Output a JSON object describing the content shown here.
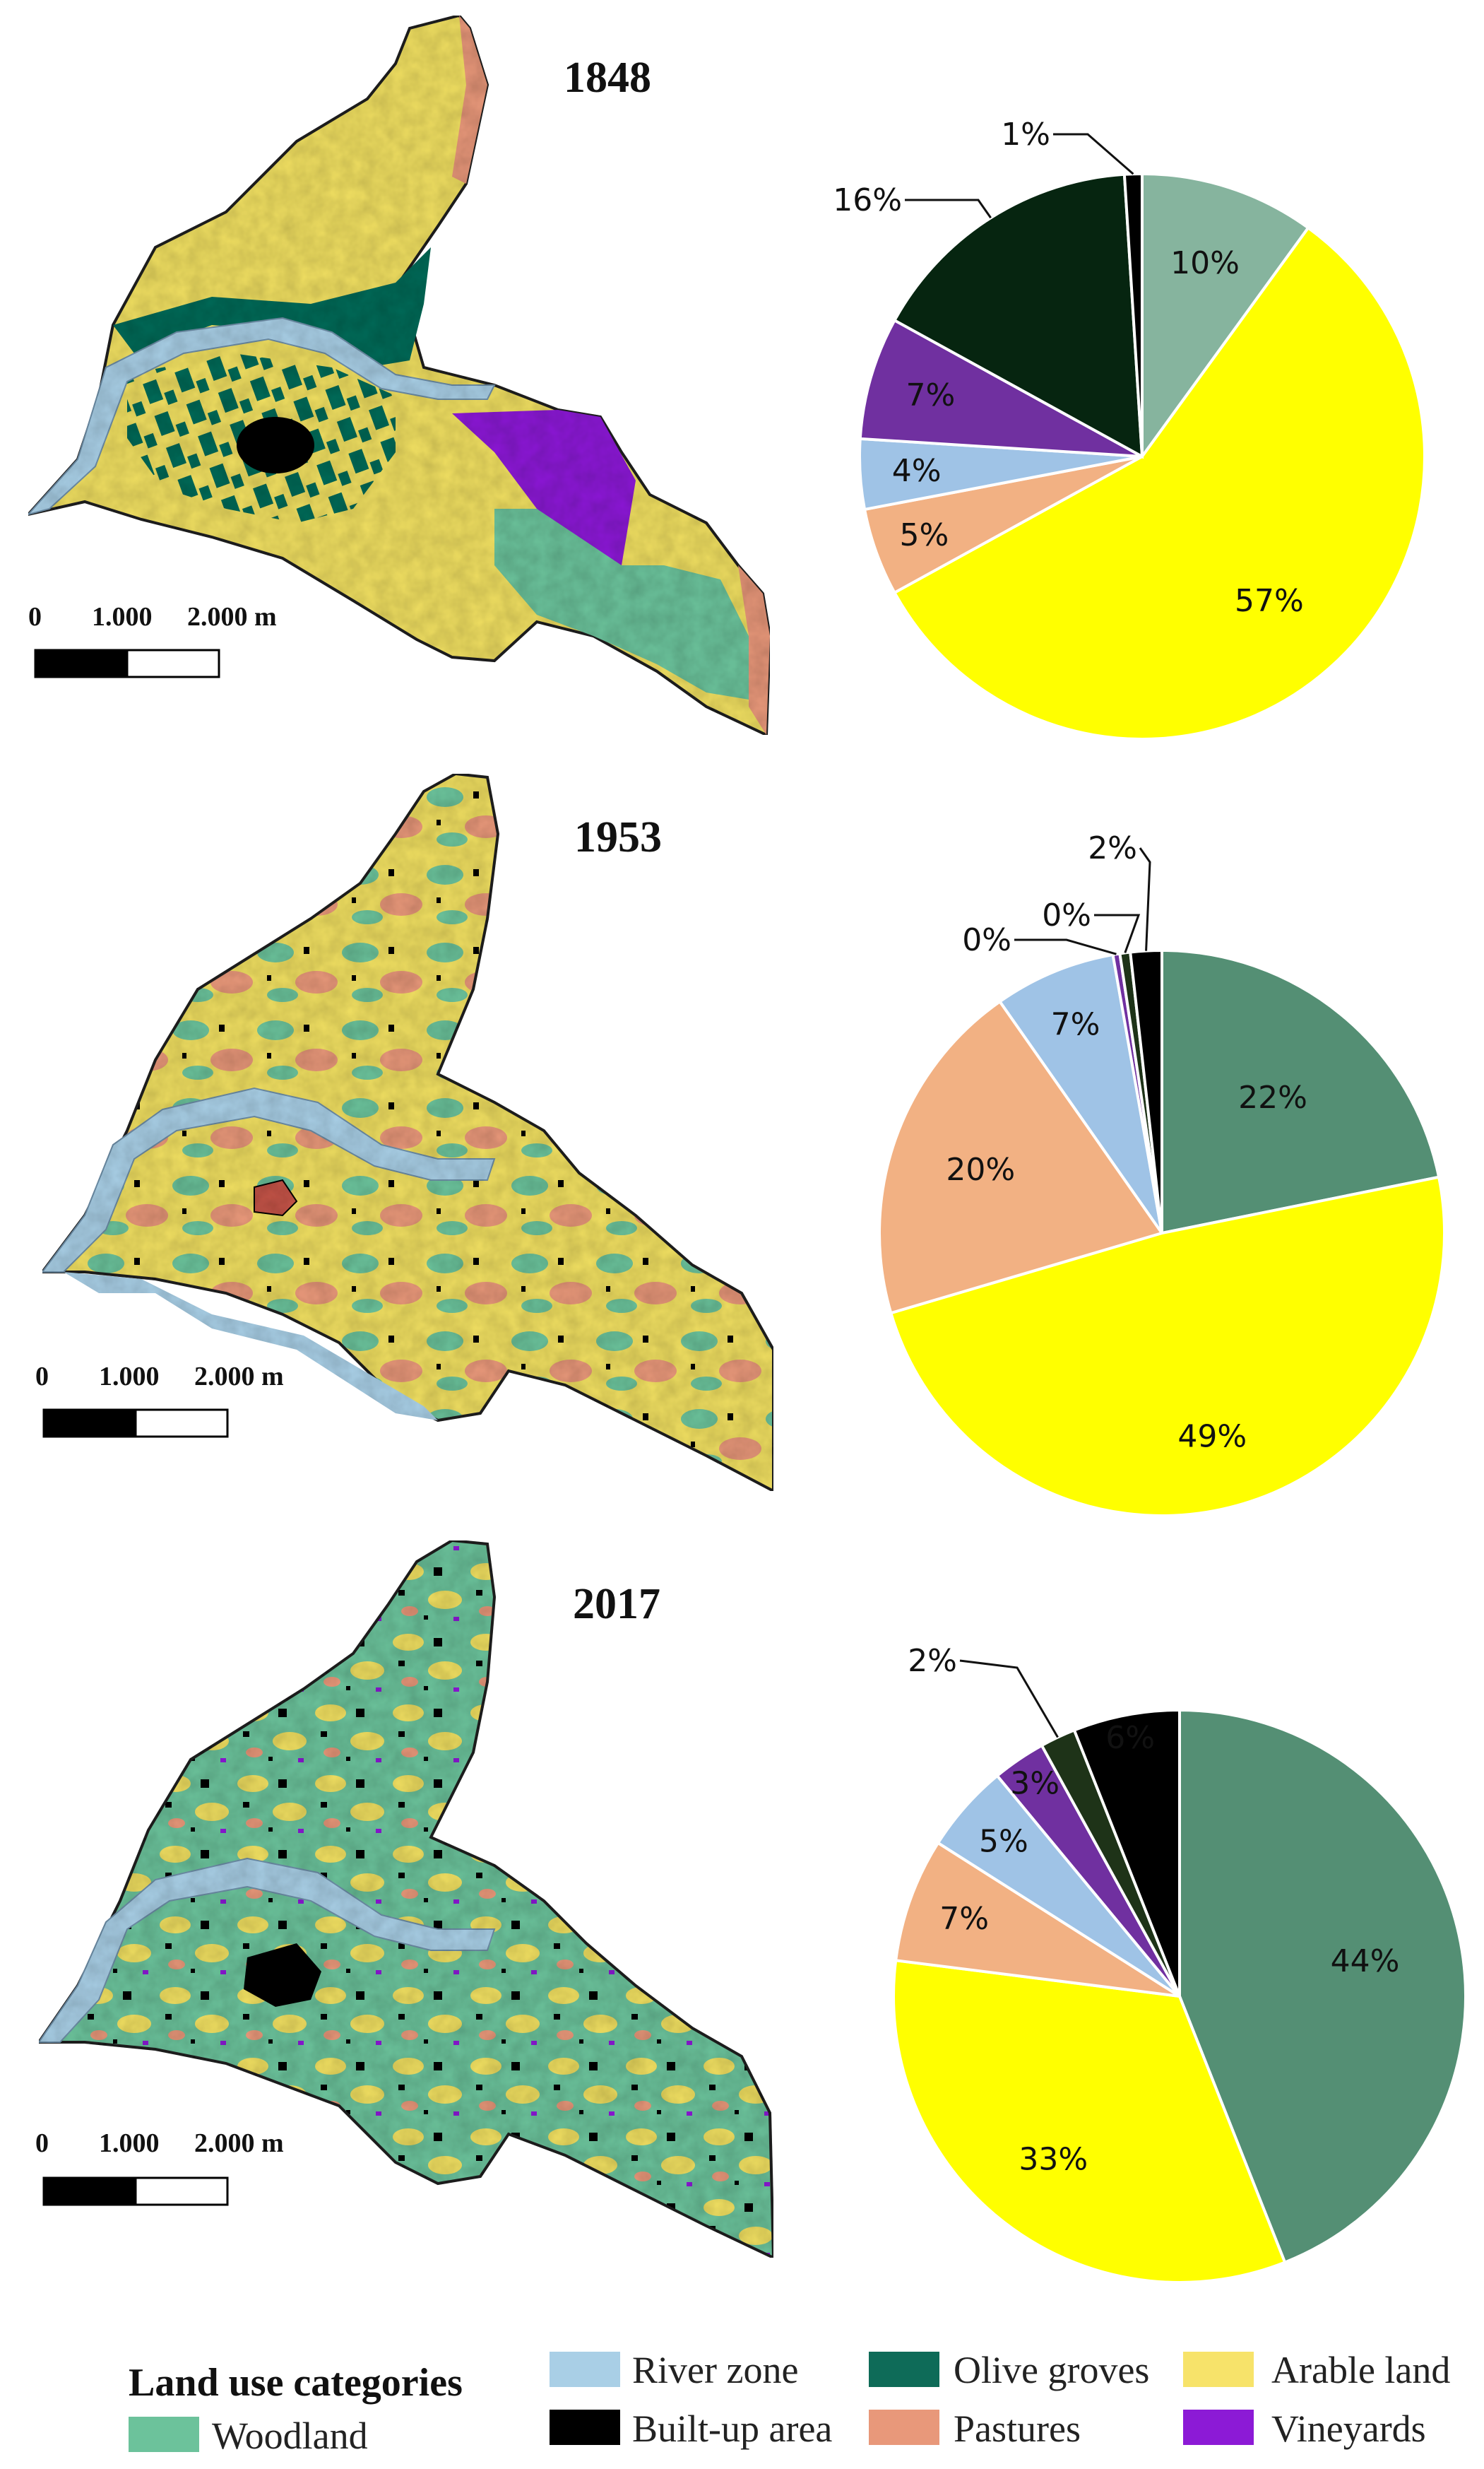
{
  "panels": [
    {
      "year": "1848",
      "scale": {
        "zero": "0",
        "mid": "1.000",
        "end": "2.000 m"
      }
    },
    {
      "year": "1953",
      "scale": {
        "zero": "0",
        "mid": "1.000",
        "end": "2.000 m"
      }
    },
    {
      "year": "2017",
      "scale": {
        "zero": "0",
        "mid": "1.000",
        "end": "2.000 m"
      }
    }
  ],
  "legend": {
    "title": "Land use categories",
    "items": [
      {
        "key": "river",
        "label": "River zone",
        "color": "#a9cfe6"
      },
      {
        "key": "olive",
        "label": "Olive groves",
        "color": "#0e6b58"
      },
      {
        "key": "arable",
        "label": "Arable land",
        "color": "#f7e36a"
      },
      {
        "key": "woodland",
        "label": "Woodland",
        "color": "#6cc29b"
      },
      {
        "key": "builtup",
        "label": "Built-up area",
        "color": "#000000"
      },
      {
        "key": "pastures",
        "label": "Pastures",
        "color": "#e8987a"
      },
      {
        "key": "vineyards",
        "label": "Vineyards",
        "color": "#8c1ad6"
      }
    ]
  },
  "chart_data": [
    {
      "type": "pie",
      "title": "1848",
      "start_angle_deg": 0,
      "slices": [
        {
          "label": "10%",
          "value": 10,
          "color": "#86b49e"
        },
        {
          "label": "57%",
          "value": 57,
          "color": "#ffff00"
        },
        {
          "label": "5%",
          "value": 5,
          "color": "#f2b183"
        },
        {
          "label": "4%",
          "value": 4,
          "color": "#9fc3e6"
        },
        {
          "label": "7%",
          "value": 7,
          "color": "#7030a0"
        },
        {
          "label": "16%",
          "value": 16,
          "color": "#062510"
        },
        {
          "label": "1%",
          "value": 1,
          "color": "#000000"
        }
      ]
    },
    {
      "type": "pie",
      "title": "1953",
      "start_angle_deg": 0,
      "slices": [
        {
          "label": "22%",
          "value": 22,
          "color": "#548f74"
        },
        {
          "label": "49%",
          "value": 49,
          "color": "#ffff00"
        },
        {
          "label": "20%",
          "value": 20,
          "color": "#f2b183"
        },
        {
          "label": "7%",
          "value": 7,
          "color": "#9fc3e6"
        },
        {
          "label": "0%",
          "value": 0.4,
          "color": "#7030a0"
        },
        {
          "label": "0%",
          "value": 0.6,
          "color": "#1e3318"
        },
        {
          "label": "2%",
          "value": 1.8,
          "color": "#000000"
        }
      ]
    },
    {
      "type": "pie",
      "title": "2017",
      "start_angle_deg": 0,
      "slices": [
        {
          "label": "44%",
          "value": 44,
          "color": "#548f74"
        },
        {
          "label": "33%",
          "value": 33,
          "color": "#ffff00"
        },
        {
          "label": "7%",
          "value": 7,
          "color": "#f2b183"
        },
        {
          "label": "5%",
          "value": 5,
          "color": "#9fc3e6"
        },
        {
          "label": "3%",
          "value": 3,
          "color": "#7030a0"
        },
        {
          "label": "2%",
          "value": 2,
          "color": "#1e3318"
        },
        {
          "label": "6%",
          "value": 6,
          "color": "#000000"
        }
      ]
    }
  ]
}
